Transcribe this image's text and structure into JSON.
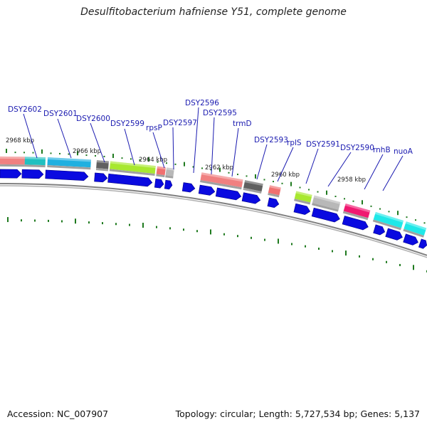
{
  "title": "Desulfitobacterium hafniense Y51, complete genome",
  "footer": {
    "accession": "Accession: NC_007907",
    "summary": "Topology: circular; Length: 5,727,534 bp; Genes: 5,137"
  },
  "colors": {
    "gene_label": "#1a1ab0",
    "cds_arrow": "#0a0ae0",
    "tick_green": "#1f7a1f",
    "backbone": "#808080"
  },
  "kbp_labels": [
    "2968 kbp",
    "2966 kbp",
    "2964 kbp",
    "2962 kbp",
    "2960 kbp",
    "2958 kbp"
  ],
  "gene_labels": [
    "DSY2602",
    "DSY2601",
    "DSY2600",
    "DSY2599",
    "rpsP",
    "DSY2597",
    "DSY2596",
    "DSY2595",
    "trmD",
    "DSY2593",
    "rplS",
    "DSY2591",
    "DSY2590",
    "rnhB",
    "nuoA"
  ],
  "category_blocks": [
    {
      "color": "#f08080"
    },
    {
      "color": "#20c0c0"
    },
    {
      "color": "#20b0e0"
    },
    {
      "color": "#606060"
    },
    {
      "color": "#a8e830"
    },
    {
      "color": "#f07070"
    },
    {
      "color": "#b8b8b8"
    },
    {
      "color": "#f08080"
    },
    {
      "color": "#606060"
    },
    {
      "color": "#f07070"
    },
    {
      "color": "#a8e830"
    },
    {
      "color": "#b8b8b8"
    },
    {
      "color": "#f01870"
    },
    {
      "color": "#20e8e8"
    },
    {
      "color": "#20e8e8"
    }
  ]
}
